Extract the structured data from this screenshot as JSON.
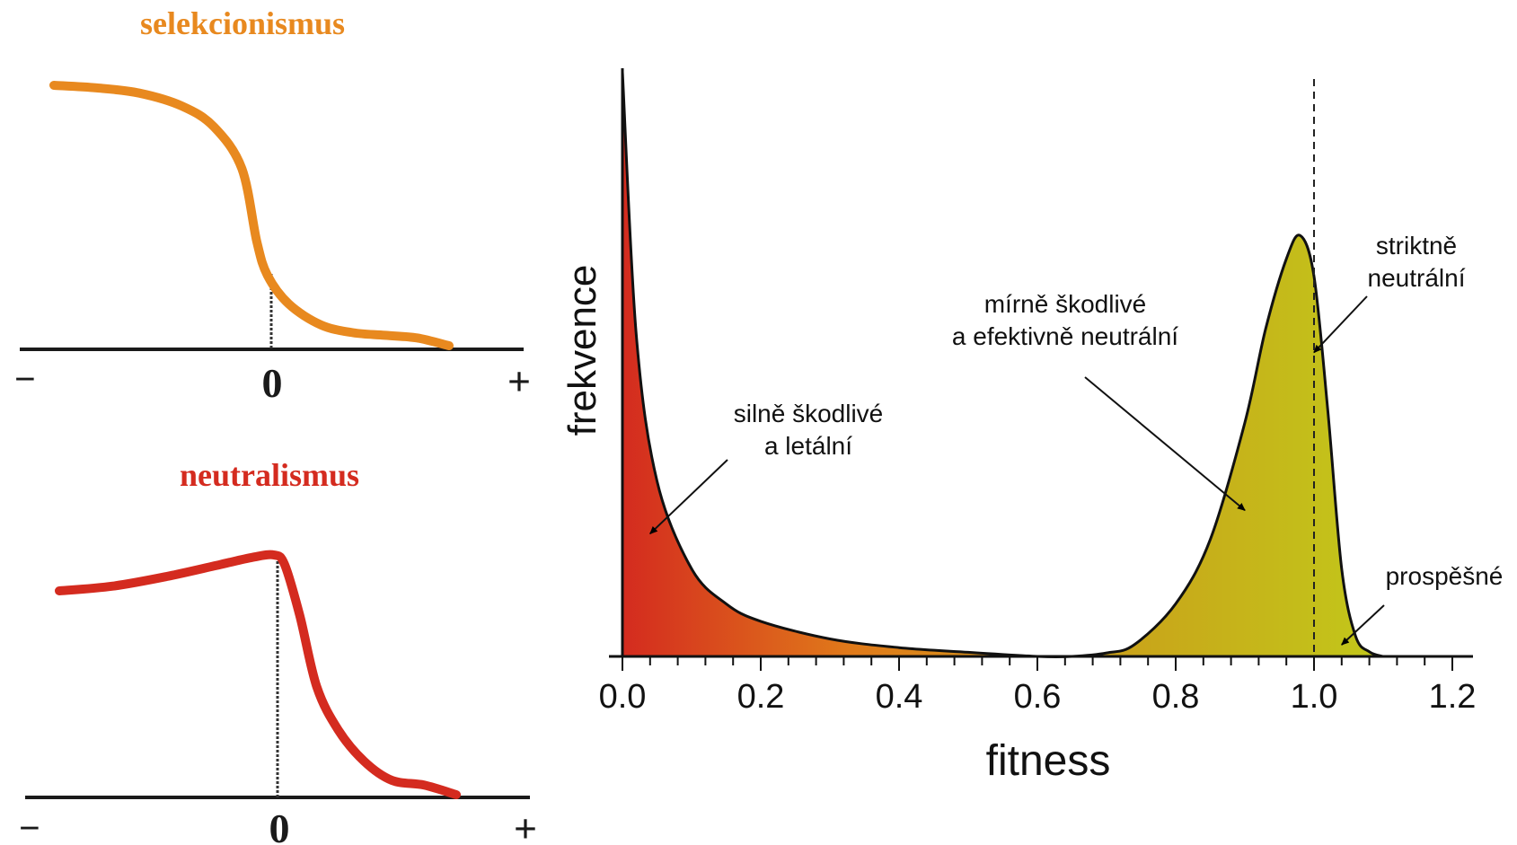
{
  "chart_data": [
    {
      "type": "line",
      "title": "selekcionismus",
      "title_color": "#e8891f",
      "line_color": "#e8891f",
      "x_tick_labels": [
        "−",
        "0",
        "+"
      ],
      "x": [
        -1.0,
        -0.8,
        -0.6,
        -0.4,
        -0.25,
        -0.12,
        -0.05,
        0.0,
        0.1,
        0.25,
        0.4,
        0.55,
        0.7,
        0.85
      ],
      "y": [
        1.0,
        0.99,
        0.97,
        0.92,
        0.84,
        0.68,
        0.4,
        0.27,
        0.16,
        0.08,
        0.05,
        0.04,
        0.03,
        0.0
      ],
      "grid": false
    },
    {
      "type": "line",
      "title": "neutralismus",
      "title_color": "#d42b1f",
      "line_color": "#d42b1f",
      "x_tick_labels": [
        "−",
        "0",
        "+"
      ],
      "x": [
        -1.0,
        -0.75,
        -0.5,
        -0.25,
        -0.1,
        0.0,
        0.05,
        0.12,
        0.2,
        0.3,
        0.42,
        0.55,
        0.7,
        0.85
      ],
      "y": [
        0.85,
        0.87,
        0.91,
        0.96,
        0.99,
        1.0,
        0.96,
        0.75,
        0.45,
        0.27,
        0.14,
        0.06,
        0.04,
        0.0
      ],
      "grid": false
    },
    {
      "type": "area",
      "xlabel": "fitness",
      "ylabel": "frekvence",
      "xlim": [
        0.0,
        1.2
      ],
      "x_ticks": [
        "0.0",
        "0.2",
        "0.4",
        "0.6",
        "0.8",
        "1.0",
        "1.2"
      ],
      "y_ticks_shown": false,
      "grid": false,
      "reference_line_x": 1.0,
      "gradient_colors": [
        "#d42b1f",
        "#e07a1a",
        "#c8a81a",
        "#c2c81a"
      ],
      "x": [
        0.0,
        0.02,
        0.05,
        0.1,
        0.15,
        0.2,
        0.3,
        0.4,
        0.5,
        0.6,
        0.65,
        0.7,
        0.74,
        0.8,
        0.85,
        0.9,
        0.93,
        0.96,
        0.98,
        1.0,
        1.02,
        1.04,
        1.06,
        1.08,
        1.1
      ],
      "y": [
        1.0,
        0.55,
        0.3,
        0.15,
        0.09,
        0.06,
        0.03,
        0.015,
        0.007,
        0.0,
        0.0,
        0.006,
        0.02,
        0.09,
        0.2,
        0.4,
        0.56,
        0.68,
        0.72,
        0.65,
        0.42,
        0.15,
        0.035,
        0.008,
        0.0
      ],
      "annotations": [
        {
          "lines": [
            "silně škodlivé",
            "a letální"
          ],
          "x": 0.04,
          "y": 0.21
        },
        {
          "lines": [
            "mírně škodlivé",
            "a efektivně neutrální"
          ],
          "x": 0.9,
          "y": 0.25
        },
        {
          "lines": [
            "striktně",
            "neutrální"
          ],
          "x": 1.0,
          "y": 0.52
        },
        {
          "lines": [
            "prospěšné"
          ],
          "x": 1.04,
          "y": 0.02
        }
      ]
    }
  ]
}
